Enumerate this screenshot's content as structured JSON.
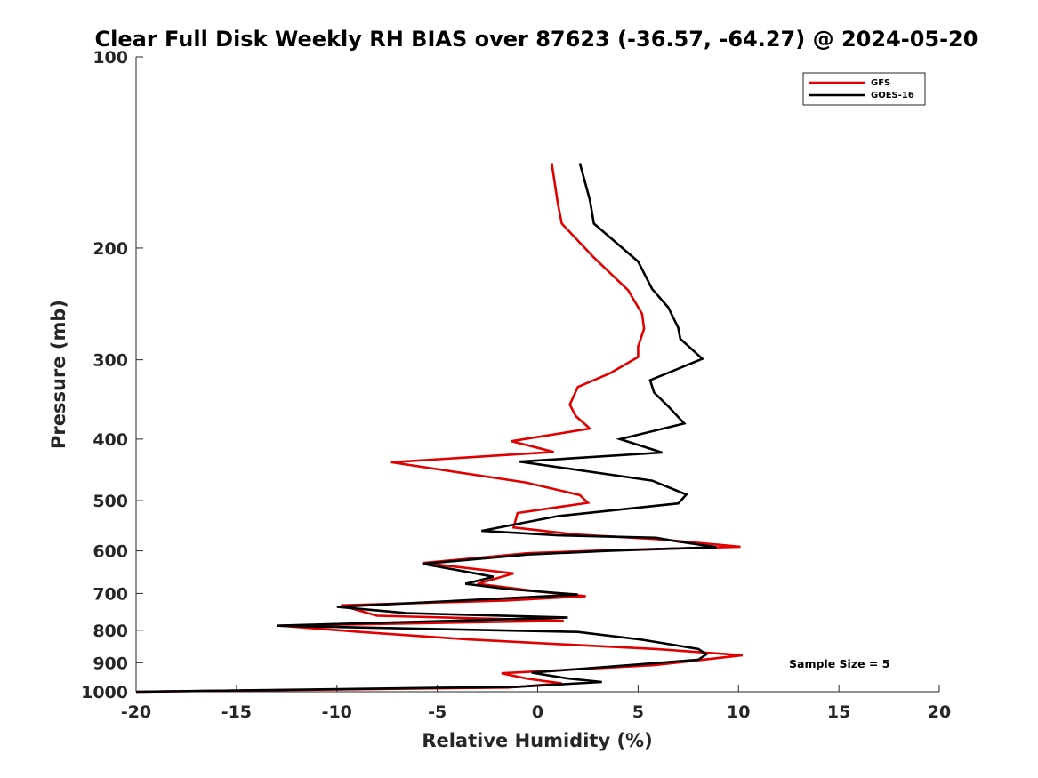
{
  "chart_data": {
    "type": "line",
    "title": "Clear Full Disk Weekly RH BIAS over 87623 (-36.57, -64.27) @ 2024-05-20",
    "xlabel": "Relative Humidity (%)",
    "ylabel": "Pressure (mb)",
    "xlim": [
      -20,
      20
    ],
    "ylim": [
      100,
      1000
    ],
    "y_scale": "log",
    "y_reversed": true,
    "x_ticks": [
      -20,
      -15,
      -10,
      -5,
      0,
      5,
      10,
      15,
      20
    ],
    "x_tick_labels": [
      "-20",
      "-15",
      "-10",
      "-5",
      "0",
      "5",
      "10",
      "15",
      "20"
    ],
    "y_ticks": [
      100,
      200,
      300,
      400,
      500,
      600,
      700,
      800,
      900,
      1000
    ],
    "y_tick_labels": [
      "100",
      "200",
      "300",
      "400",
      "500",
      "600",
      "700",
      "800",
      "900",
      "1000"
    ],
    "grid": false,
    "legend_position": "top-right",
    "annotation": "Sample Size = 5",
    "series": [
      {
        "name": "GFS",
        "color": "#e00000",
        "points": [
          [
            0.7,
            147
          ],
          [
            1.0,
            170
          ],
          [
            1.2,
            183
          ],
          [
            2.8,
            207
          ],
          [
            4.5,
            233
          ],
          [
            5.2,
            254
          ],
          [
            5.3,
            268
          ],
          [
            5.0,
            286
          ],
          [
            5.0,
            297
          ],
          [
            3.6,
            315
          ],
          [
            2.0,
            331
          ],
          [
            1.6,
            353
          ],
          [
            1.9,
            368
          ],
          [
            2.6,
            385
          ],
          [
            -1.3,
            403
          ],
          [
            0.8,
            419
          ],
          [
            -7.3,
            435
          ],
          [
            -0.6,
            468
          ],
          [
            2.1,
            490
          ],
          [
            2.5,
            504
          ],
          [
            -1.0,
            523
          ],
          [
            -1.2,
            551
          ],
          [
            1.8,
            565
          ],
          [
            6.0,
            575
          ],
          [
            7.8,
            582
          ],
          [
            10.1,
            591
          ],
          [
            4.0,
            598
          ],
          [
            -0.5,
            605
          ],
          [
            -5.7,
            627
          ],
          [
            -1.2,
            651
          ],
          [
            -3.0,
            676
          ],
          [
            0.0,
            695
          ],
          [
            2.4,
            707
          ],
          [
            -1.5,
            718
          ],
          [
            -9.8,
            731
          ],
          [
            -8.0,
            759
          ],
          [
            -1.0,
            769
          ],
          [
            1.3,
            773
          ],
          [
            -12.8,
            787
          ],
          [
            -9.0,
            804
          ],
          [
            -3.5,
            827
          ],
          [
            6.0,
            857
          ],
          [
            10.2,
            876
          ],
          [
            8.0,
            892
          ],
          [
            5.8,
            908
          ],
          [
            -1.8,
            935
          ],
          [
            -0.5,
            954
          ],
          [
            1.2,
            970
          ],
          [
            -1.5,
            985
          ],
          [
            -20.0,
            1000
          ]
        ]
      },
      {
        "name": "GOES-16",
        "color": "#000000",
        "points": [
          [
            2.1,
            147
          ],
          [
            2.6,
            168
          ],
          [
            2.8,
            183
          ],
          [
            5.0,
            210
          ],
          [
            5.7,
            232
          ],
          [
            6.5,
            248
          ],
          [
            7.0,
            267
          ],
          [
            7.1,
            278
          ],
          [
            8.2,
            299
          ],
          [
            5.6,
            323
          ],
          [
            5.8,
            338
          ],
          [
            6.5,
            355
          ],
          [
            7.3,
            378
          ],
          [
            4.1,
            400
          ],
          [
            6.2,
            420
          ],
          [
            -0.9,
            434
          ],
          [
            5.7,
            465
          ],
          [
            7.4,
            489
          ],
          [
            7.0,
            505
          ],
          [
            1.0,
            529
          ],
          [
            -2.8,
            558
          ],
          [
            1.0,
            567
          ],
          [
            5.9,
            572
          ],
          [
            7.0,
            580
          ],
          [
            8.9,
            592
          ],
          [
            3.5,
            600
          ],
          [
            -0.5,
            608
          ],
          [
            -5.7,
            629
          ],
          [
            -2.2,
            659
          ],
          [
            -3.6,
            676
          ],
          [
            -1.5,
            689
          ],
          [
            2.0,
            703
          ],
          [
            -10.0,
            735
          ],
          [
            -6.5,
            752
          ],
          [
            1.5,
            764
          ],
          [
            -13.0,
            787
          ],
          [
            2.0,
            805
          ],
          [
            5.2,
            828
          ],
          [
            8.0,
            856
          ],
          [
            8.4,
            873
          ],
          [
            8.0,
            890
          ],
          [
            5.5,
            903
          ],
          [
            -0.3,
            933
          ],
          [
            1.5,
            953
          ],
          [
            3.2,
            965
          ],
          [
            -1.0,
            982
          ],
          [
            -20.0,
            1000
          ]
        ]
      }
    ]
  }
}
